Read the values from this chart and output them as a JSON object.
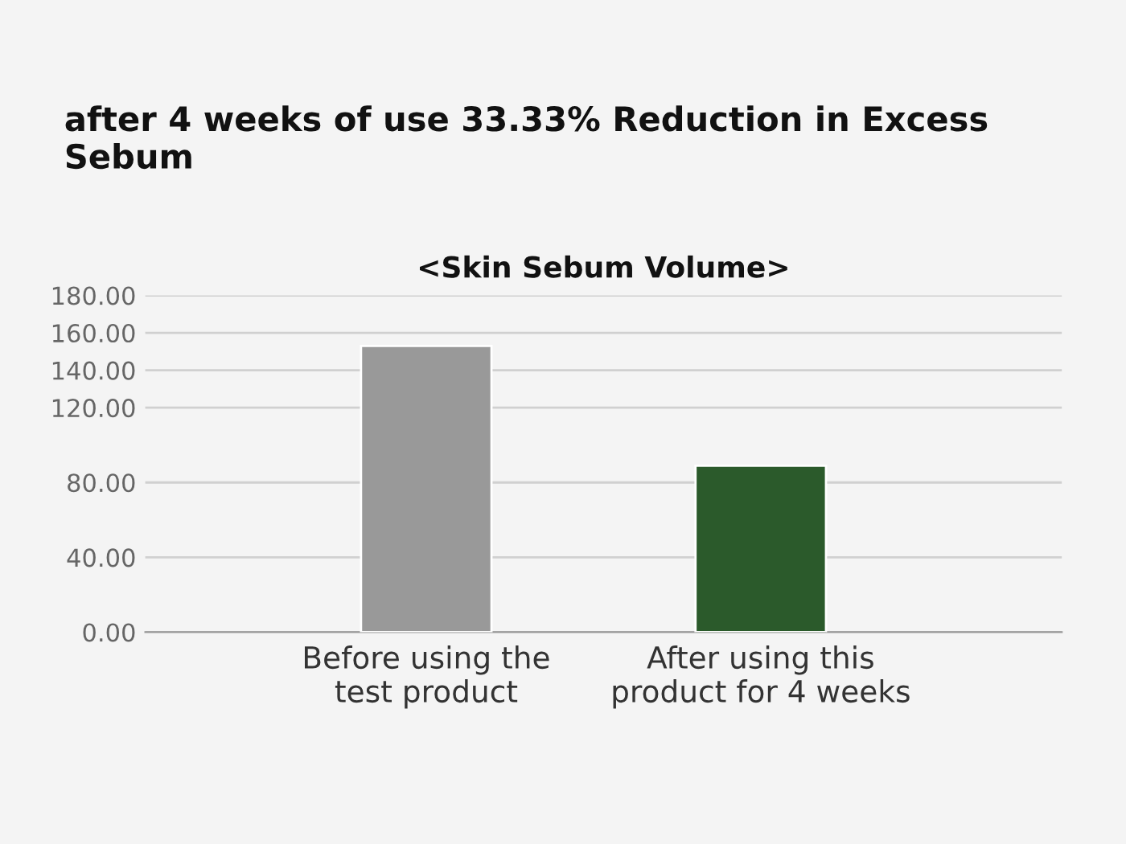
{
  "chart_data": {
    "type": "bar",
    "title": "after 4 weeks of use 33.33% Reduction in Excess Sebum",
    "subtitle": "<Skin Sebum Volume>",
    "categories": [
      "Before using the\ntest product",
      "After using this\nproduct for 4 weeks"
    ],
    "values": [
      153,
      89
    ],
    "colors": [
      "#999999",
      "#2b5a2b"
    ],
    "ylim": [
      0,
      180
    ],
    "yticks": [
      {
        "value": 0,
        "label": "0.00"
      },
      {
        "value": 40,
        "label": "40.00"
      },
      {
        "value": 80,
        "label": "80.00"
      },
      {
        "value": 120,
        "label": "120.00"
      },
      {
        "value": 140,
        "label": "140.00"
      },
      {
        "value": 160,
        "label": "160.00"
      },
      {
        "value": 180,
        "label": "180.00"
      }
    ],
    "grid": "y",
    "legend": false
  }
}
